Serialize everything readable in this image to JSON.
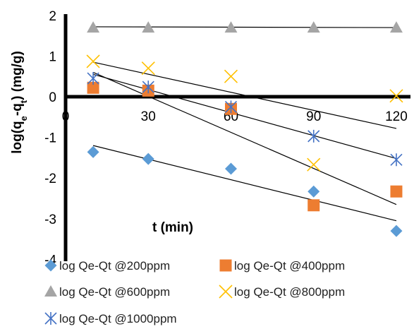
{
  "chart_data": {
    "type": "scatter",
    "xlabel": "t (min)",
    "ylabel_parts": [
      "log(q",
      "e",
      "-q",
      "t",
      ") (mg/g)"
    ],
    "x_ticks": [
      "0",
      "30",
      "60",
      "90",
      "120"
    ],
    "y_ticks": [
      "2",
      "1",
      "0",
      "-1",
      "-2",
      "-3",
      "-4"
    ],
    "xlim": [
      0,
      125
    ],
    "ylim": [
      -4,
      2
    ],
    "grid": false,
    "legend_position": "bottom",
    "x": [
      10,
      30,
      60,
      90,
      120
    ],
    "series": [
      {
        "name": "log Qe-Qt @200ppm",
        "marker": "diamond",
        "color": "#5b9bd5",
        "values": [
          -1.36,
          -1.53,
          -1.77,
          -2.33,
          -3.3
        ],
        "trendline": [
          [
            10,
            -1.2
          ],
          [
            120,
            -3.05
          ]
        ]
      },
      {
        "name": "log Qe-Qt @400ppm",
        "marker": "square",
        "color": "#ed7d31",
        "values": [
          0.22,
          0.15,
          -0.3,
          -2.67,
          -2.33
        ],
        "trendline": [
          [
            10,
            0.6
          ],
          [
            120,
            -2.65
          ]
        ]
      },
      {
        "name": "log Qe-Qt @600ppm",
        "marker": "triangle",
        "color": "#a5a5a5",
        "values": [
          1.7,
          1.7,
          1.7,
          1.7,
          1.7
        ],
        "trendline": [
          [
            10,
            1.72
          ],
          [
            120,
            1.7
          ]
        ]
      },
      {
        "name": "log Qe-Qt @800ppm",
        "marker": "x",
        "color": "#ffc000",
        "values": [
          0.87,
          0.7,
          0.5,
          -1.67,
          0.02
        ],
        "trendline": [
          [
            10,
            0.85
          ],
          [
            120,
            -0.78
          ]
        ]
      },
      {
        "name": "log Qe-Qt @1000ppm",
        "marker": "star",
        "color": "#4472c4",
        "values": [
          0.45,
          0.24,
          -0.25,
          -0.97,
          -1.55
        ],
        "trendline": [
          [
            10,
            0.55
          ],
          [
            120,
            -1.52
          ]
        ]
      }
    ]
  }
}
